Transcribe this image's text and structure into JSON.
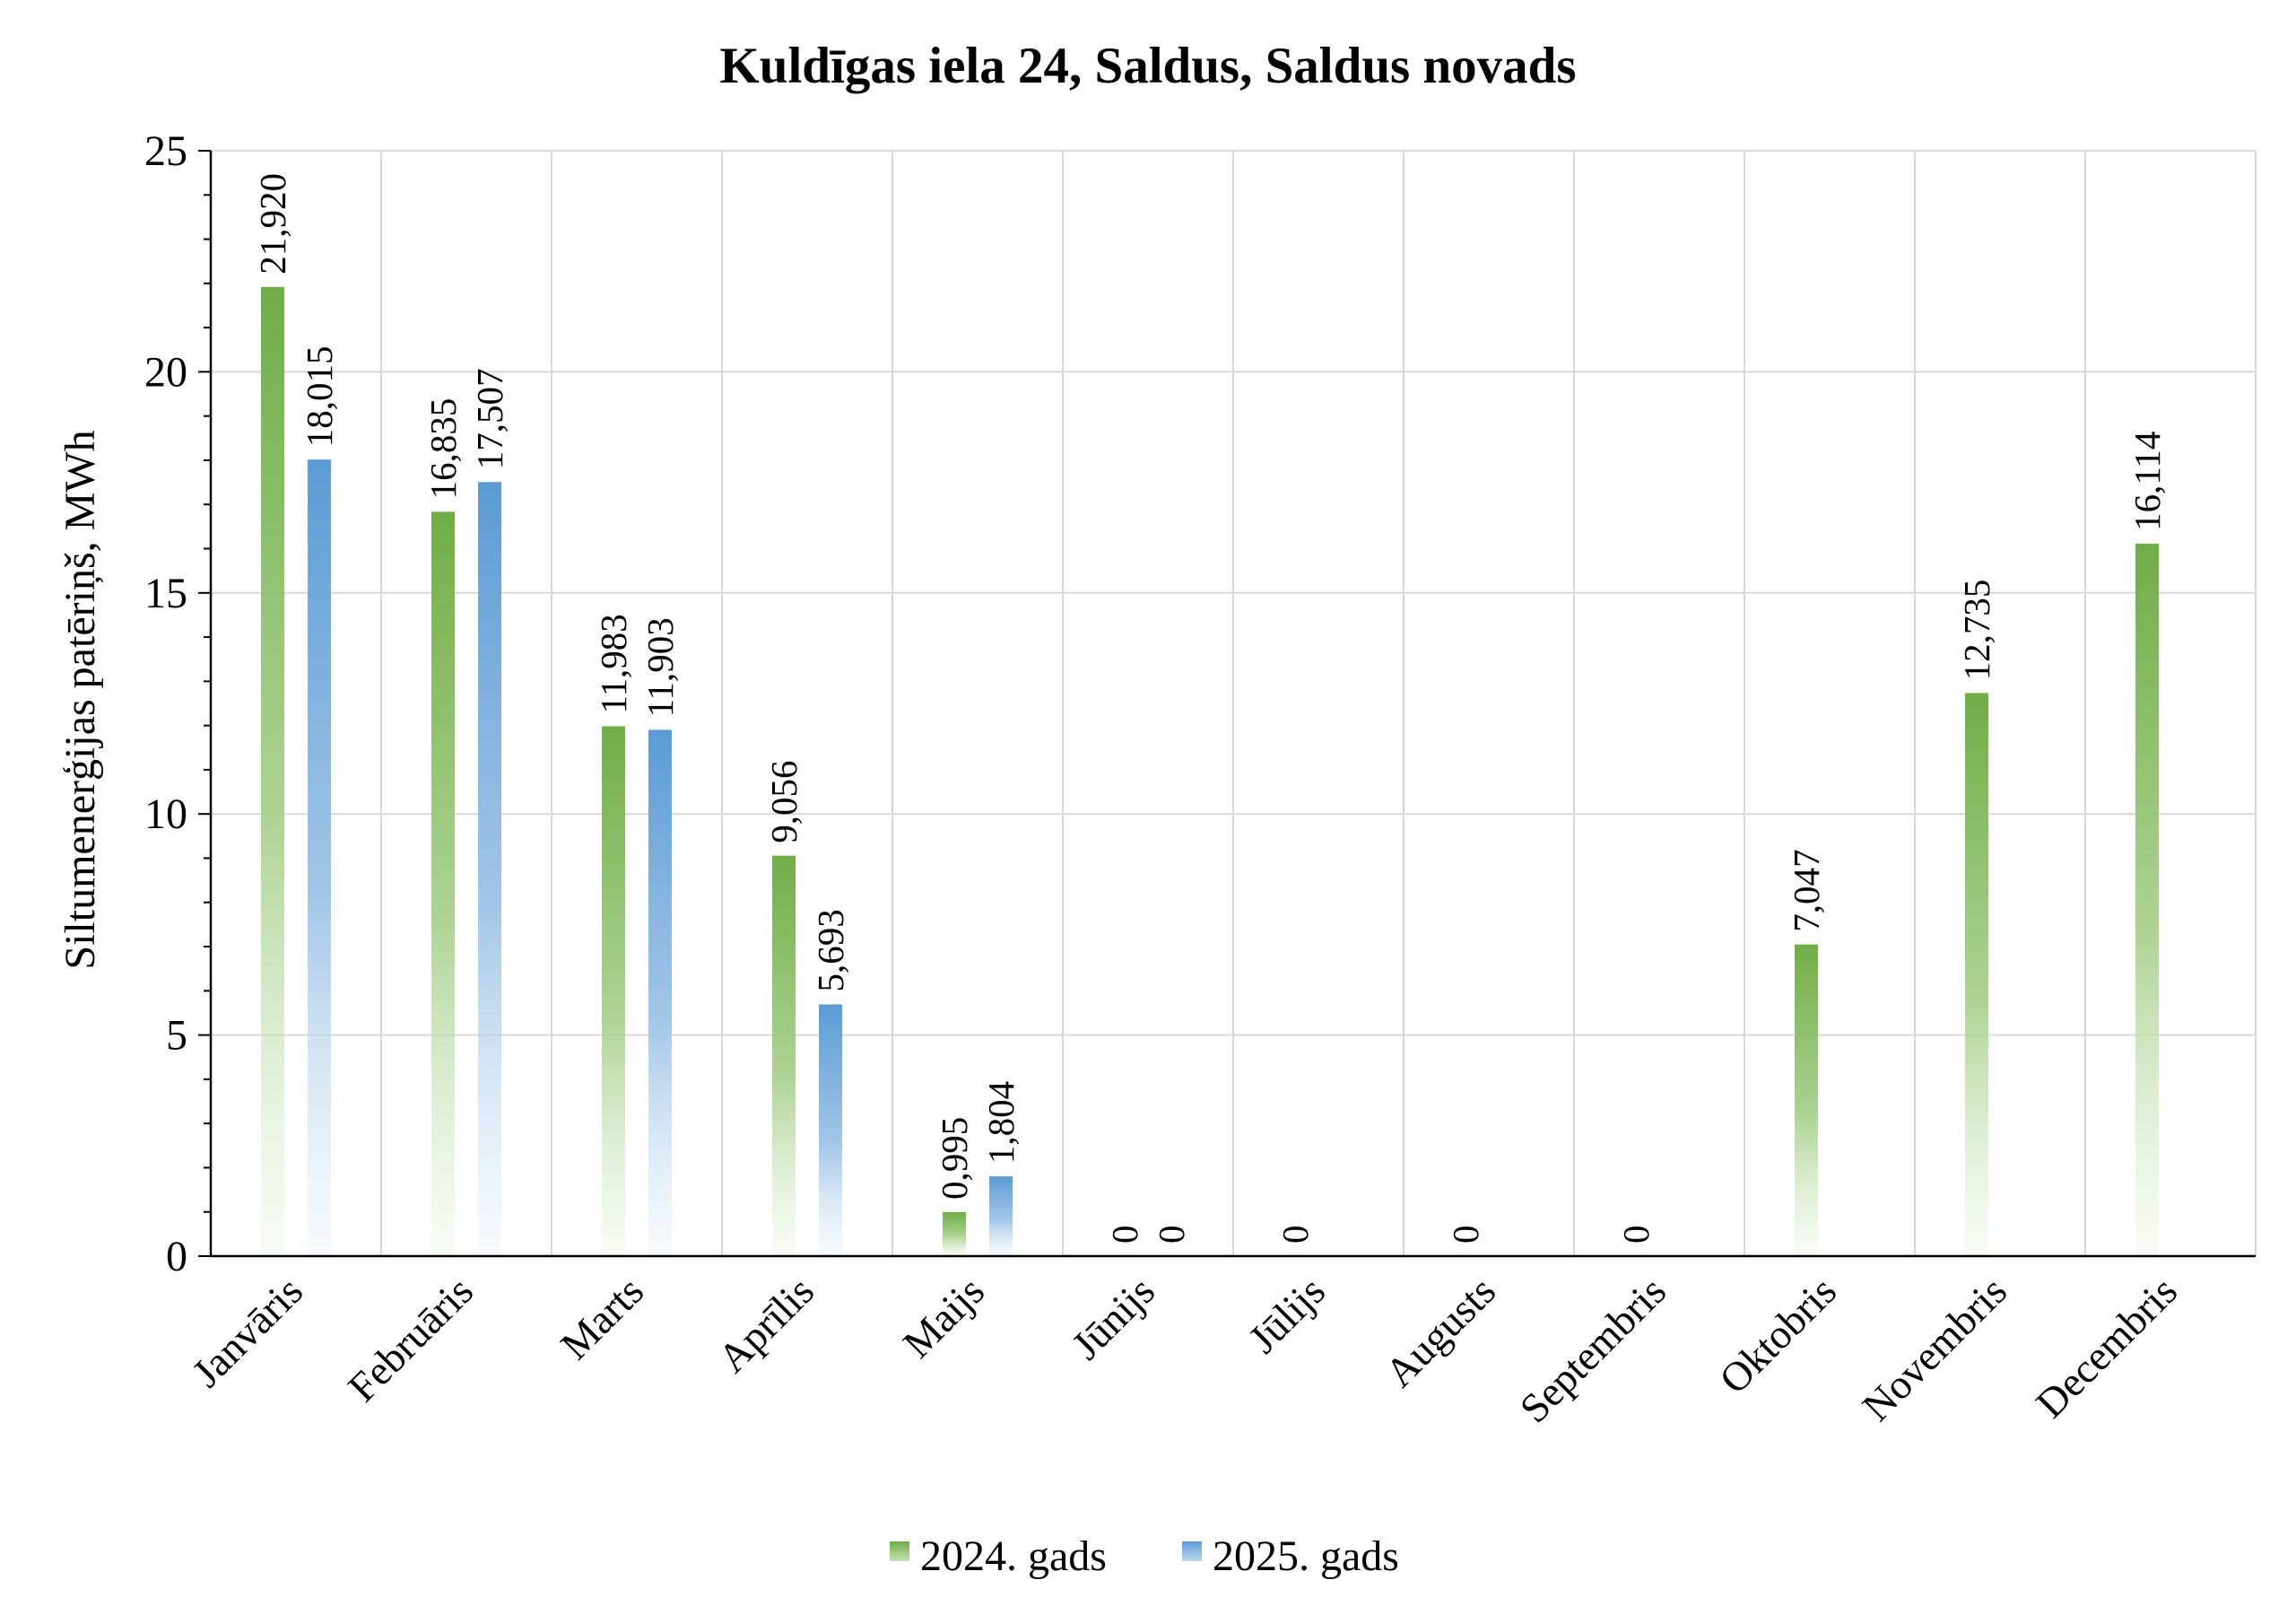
{
  "chart_data": {
    "type": "bar",
    "title": "Kuldīgas iela 24, Saldus, Saldus novads",
    "xlabel": "",
    "ylabel": "Siltumenerģijas patēriņš, MWh",
    "ylim": [
      0,
      25
    ],
    "yticks": [
      "0",
      "5",
      "10",
      "15",
      "20",
      "25"
    ],
    "grid": true,
    "legend_position": "bottom",
    "categories": [
      "Janvāris",
      "Februāris",
      "Marts",
      "Aprīlis",
      "Maijs",
      "Jūnijs",
      "Jūlijs",
      "Augusts",
      "Septembris",
      "Oktobris",
      "Novembris",
      "Decembris"
    ],
    "series": [
      {
        "name": "2024. gads",
        "color": "#70AD47",
        "values": [
          21.92,
          16.835,
          11.983,
          9.056,
          0.995,
          0,
          0,
          0,
          0,
          7.047,
          12.735,
          16.114
        ],
        "labels": [
          "21,920",
          "16,835",
          "11,983",
          "9,056",
          "0,995",
          "0",
          "0",
          "0",
          "0",
          "7,047",
          "12,735",
          "16,114"
        ]
      },
      {
        "name": "2025. gads",
        "color": "#5B9BD5",
        "values": [
          18.015,
          17.507,
          11.903,
          5.693,
          1.804,
          0,
          null,
          null,
          null,
          null,
          null,
          null
        ],
        "labels": [
          "18,015",
          "17,507",
          "11,903",
          "5,693",
          "1,804",
          "0",
          "",
          "",
          "",
          "",
          "",
          ""
        ]
      }
    ]
  }
}
